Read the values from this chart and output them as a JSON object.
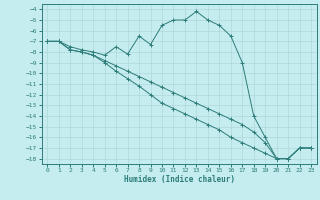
{
  "xlabel": "Humidex (Indice chaleur)",
  "bg_color": "#c5ecee",
  "line_color": "#2d7d7a",
  "grid_color": "#b0d8da",
  "xlim": [
    -0.5,
    23.5
  ],
  "ylim": [
    -18.5,
    -3.5
  ],
  "xticks": [
    0,
    1,
    2,
    3,
    4,
    5,
    6,
    7,
    8,
    9,
    10,
    11,
    12,
    13,
    14,
    15,
    16,
    17,
    18,
    19,
    20,
    21,
    22,
    23
  ],
  "yticks": [
    -4,
    -5,
    -6,
    -7,
    -8,
    -9,
    -10,
    -11,
    -12,
    -13,
    -14,
    -15,
    -16,
    -17,
    -18
  ],
  "series1_x": [
    0,
    1,
    2,
    3,
    4,
    5,
    6,
    7,
    8,
    9,
    10,
    11,
    12,
    13,
    14,
    15,
    16,
    17,
    18,
    19,
    20,
    21,
    22,
    23
  ],
  "series1_y": [
    -7,
    -7,
    -7.5,
    -7.8,
    -8.0,
    -8.3,
    -7.5,
    -8.2,
    -6.5,
    -7.3,
    -5.5,
    -5.0,
    -5.0,
    -4.2,
    -5.0,
    -5.5,
    -6.5,
    -9.0,
    -14.0,
    -16.0,
    -18.0,
    -18.0,
    -17.0,
    -17.0
  ],
  "series2_x": [
    0,
    1,
    2,
    3,
    4,
    5,
    6,
    7,
    8,
    9,
    10,
    11,
    12,
    13,
    14,
    15,
    16,
    17,
    18,
    19,
    20,
    21,
    22,
    23
  ],
  "series2_y": [
    -7,
    -7,
    -7.8,
    -8.0,
    -8.3,
    -8.8,
    -9.3,
    -9.8,
    -10.3,
    -10.8,
    -11.3,
    -11.8,
    -12.3,
    -12.8,
    -13.3,
    -13.8,
    -14.3,
    -14.8,
    -15.5,
    -16.5,
    -18.0,
    -18.0,
    -17.0,
    -17.0
  ],
  "series3_x": [
    0,
    1,
    2,
    3,
    4,
    5,
    6,
    7,
    8,
    9,
    10,
    11,
    12,
    13,
    14,
    15,
    16,
    17,
    18,
    19,
    20,
    21,
    22,
    23
  ],
  "series3_y": [
    -7,
    -7,
    -7.8,
    -8.0,
    -8.3,
    -9.0,
    -9.8,
    -10.5,
    -11.2,
    -12.0,
    -12.8,
    -13.3,
    -13.8,
    -14.3,
    -14.8,
    -15.3,
    -16.0,
    -16.5,
    -17.0,
    -17.5,
    -18.0,
    -18.0,
    -17.0,
    -17.0
  ]
}
